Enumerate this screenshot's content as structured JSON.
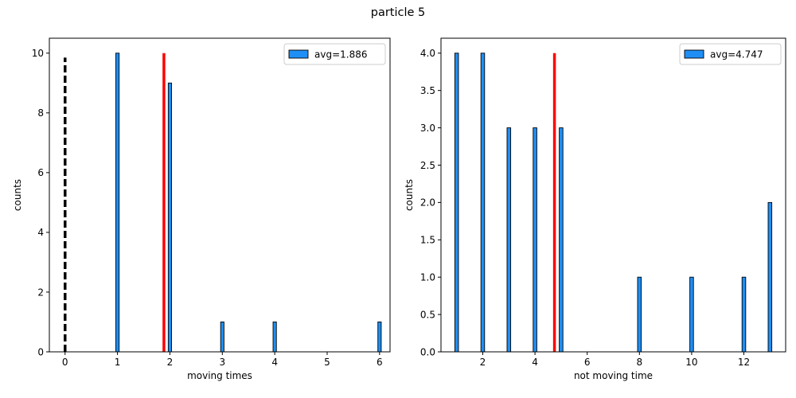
{
  "figure": {
    "title": "particle 5"
  },
  "chart_data": [
    {
      "type": "bar",
      "xlabel": "moving times",
      "ylabel": "counts",
      "xlim": [
        -0.3,
        6.2
      ],
      "ylim": [
        0,
        10.5
      ],
      "xticks": [
        0,
        1,
        2,
        3,
        4,
        5,
        6
      ],
      "yticks": [
        0,
        2,
        4,
        6,
        8,
        10
      ],
      "ytick_labels": [
        "0",
        "2",
        "4",
        "6",
        "8",
        "10"
      ],
      "bars": [
        {
          "x": 1,
          "value": 10
        },
        {
          "x": 2,
          "value": 9
        },
        {
          "x": 3,
          "value": 1
        },
        {
          "x": 4,
          "value": 1
        },
        {
          "x": 6,
          "value": 1
        }
      ],
      "bar_color": "#1f8ff5",
      "legend": {
        "label": "avg=1.886",
        "position": "top-right"
      },
      "mean_line": {
        "x": 1.886,
        "height": 10,
        "color": "#ff0000"
      },
      "reference_line": {
        "x": 0,
        "height": 9.85,
        "style": "dashed",
        "color": "#000000"
      }
    },
    {
      "type": "bar",
      "xlabel": "not moving time",
      "ylabel": "counts",
      "xlim": [
        0.4,
        13.6
      ],
      "ylim": [
        0,
        4.2
      ],
      "xticks": [
        2,
        4,
        6,
        8,
        10,
        12
      ],
      "yticks": [
        0,
        0.5,
        1.0,
        1.5,
        2.0,
        2.5,
        3.0,
        3.5,
        4.0
      ],
      "ytick_labels": [
        "0.0",
        "0.5",
        "1.0",
        "1.5",
        "2.0",
        "2.5",
        "3.0",
        "3.5",
        "4.0"
      ],
      "bars": [
        {
          "x": 1,
          "value": 4
        },
        {
          "x": 2,
          "value": 4
        },
        {
          "x": 3,
          "value": 3
        },
        {
          "x": 4,
          "value": 3
        },
        {
          "x": 5,
          "value": 3
        },
        {
          "x": 8,
          "value": 1
        },
        {
          "x": 10,
          "value": 1
        },
        {
          "x": 12,
          "value": 1
        },
        {
          "x": 13,
          "value": 2
        }
      ],
      "bar_color": "#1f8ff5",
      "legend": {
        "label": "avg=4.747",
        "position": "top-right"
      },
      "mean_line": {
        "x": 4.747,
        "height": 4,
        "color": "#ff0000"
      }
    }
  ]
}
